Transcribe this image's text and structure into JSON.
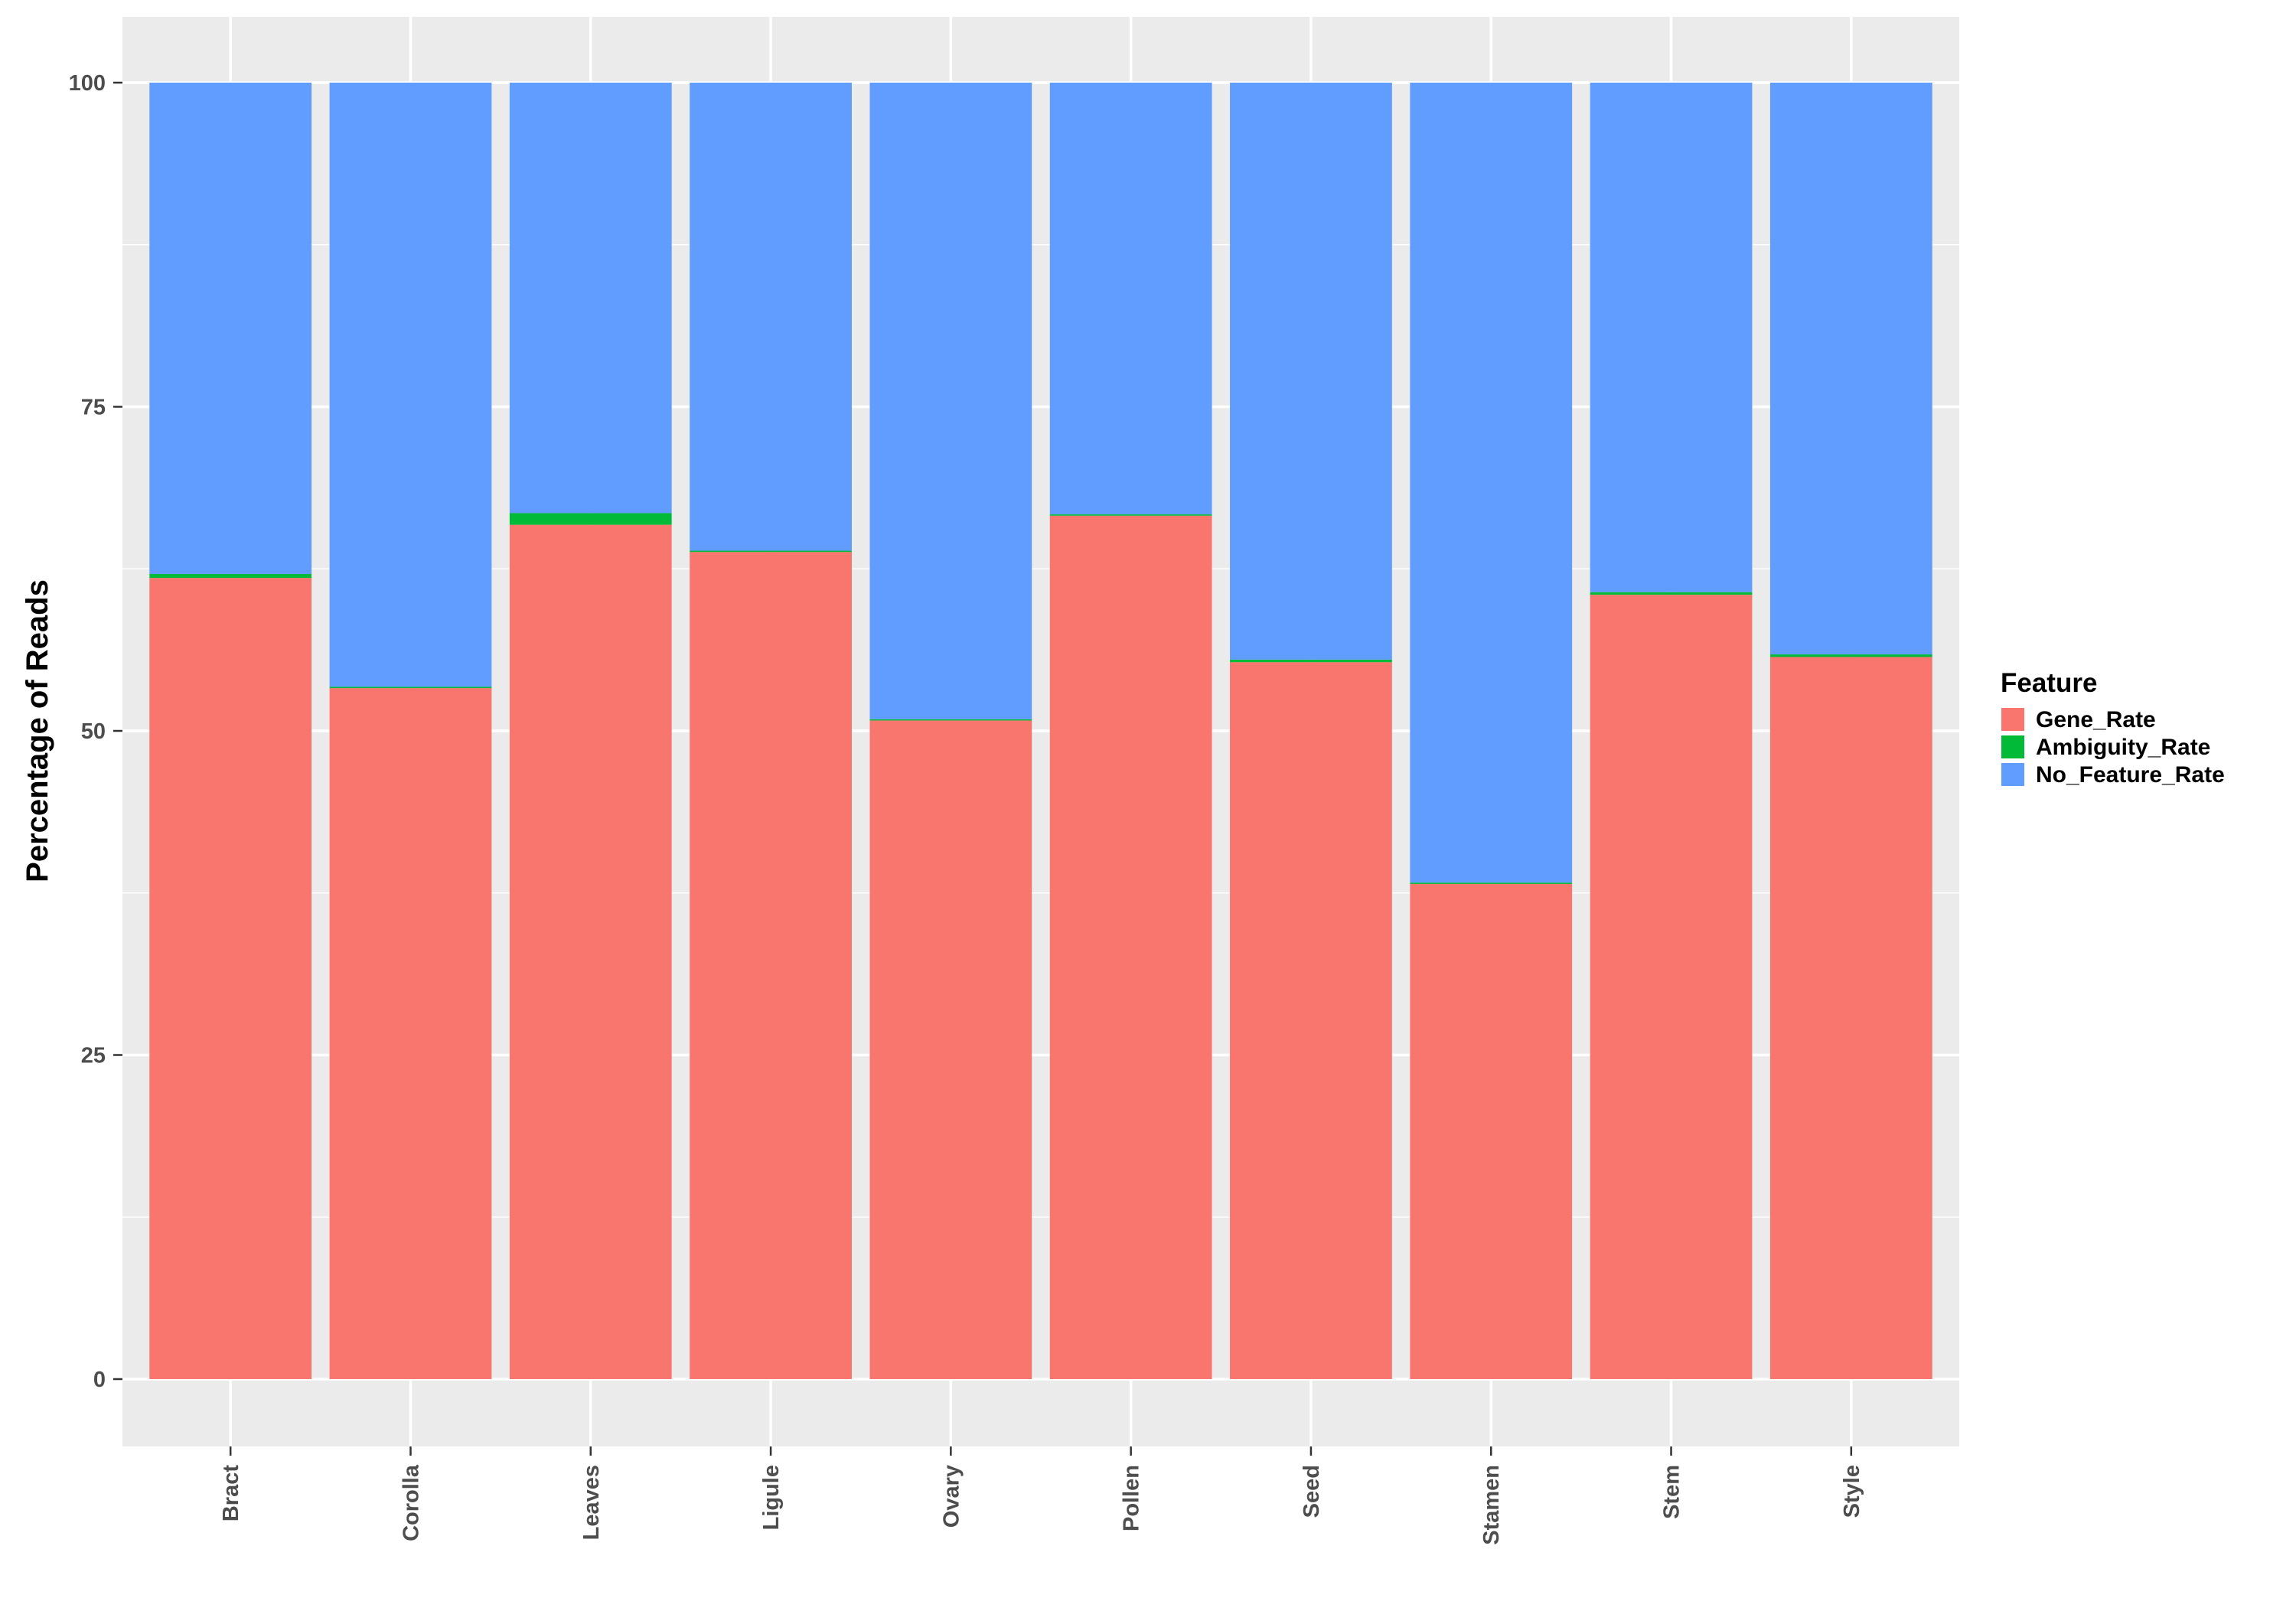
{
  "chart_data": {
    "type": "bar",
    "stacked": true,
    "title": "",
    "xlabel": "",
    "ylabel": "Percentage of Reads",
    "ylim": [
      0,
      105
    ],
    "yticks": [
      0,
      25,
      50,
      75,
      100
    ],
    "ytick_labels": [
      "0",
      "25",
      "50",
      "75",
      "100"
    ],
    "grid": true,
    "legend": {
      "title": "Feature",
      "placement": "right"
    },
    "categories": [
      "Bract",
      "Corolla",
      "Leaves",
      "Ligule",
      "Ovary",
      "Pollen",
      "Seed",
      "Stamen",
      "Stem",
      "Style"
    ],
    "series": [
      {
        "name": "Gene_Rate",
        "color": "#F8766D",
        "values": [
          61.8,
          53.3,
          65.9,
          63.8,
          50.8,
          66.6,
          55.3,
          38.2,
          60.5,
          55.7
        ]
      },
      {
        "name": "Ambiguity_Rate",
        "color": "#00BA38",
        "values": [
          0.3,
          0.1,
          0.9,
          0.1,
          0.1,
          0.1,
          0.2,
          0.1,
          0.2,
          0.2
        ]
      },
      {
        "name": "No_Feature_Rate",
        "color": "#619CFF",
        "values": [
          37.9,
          46.6,
          33.2,
          36.1,
          49.1,
          33.3,
          44.5,
          61.7,
          39.3,
          44.1
        ]
      }
    ]
  }
}
